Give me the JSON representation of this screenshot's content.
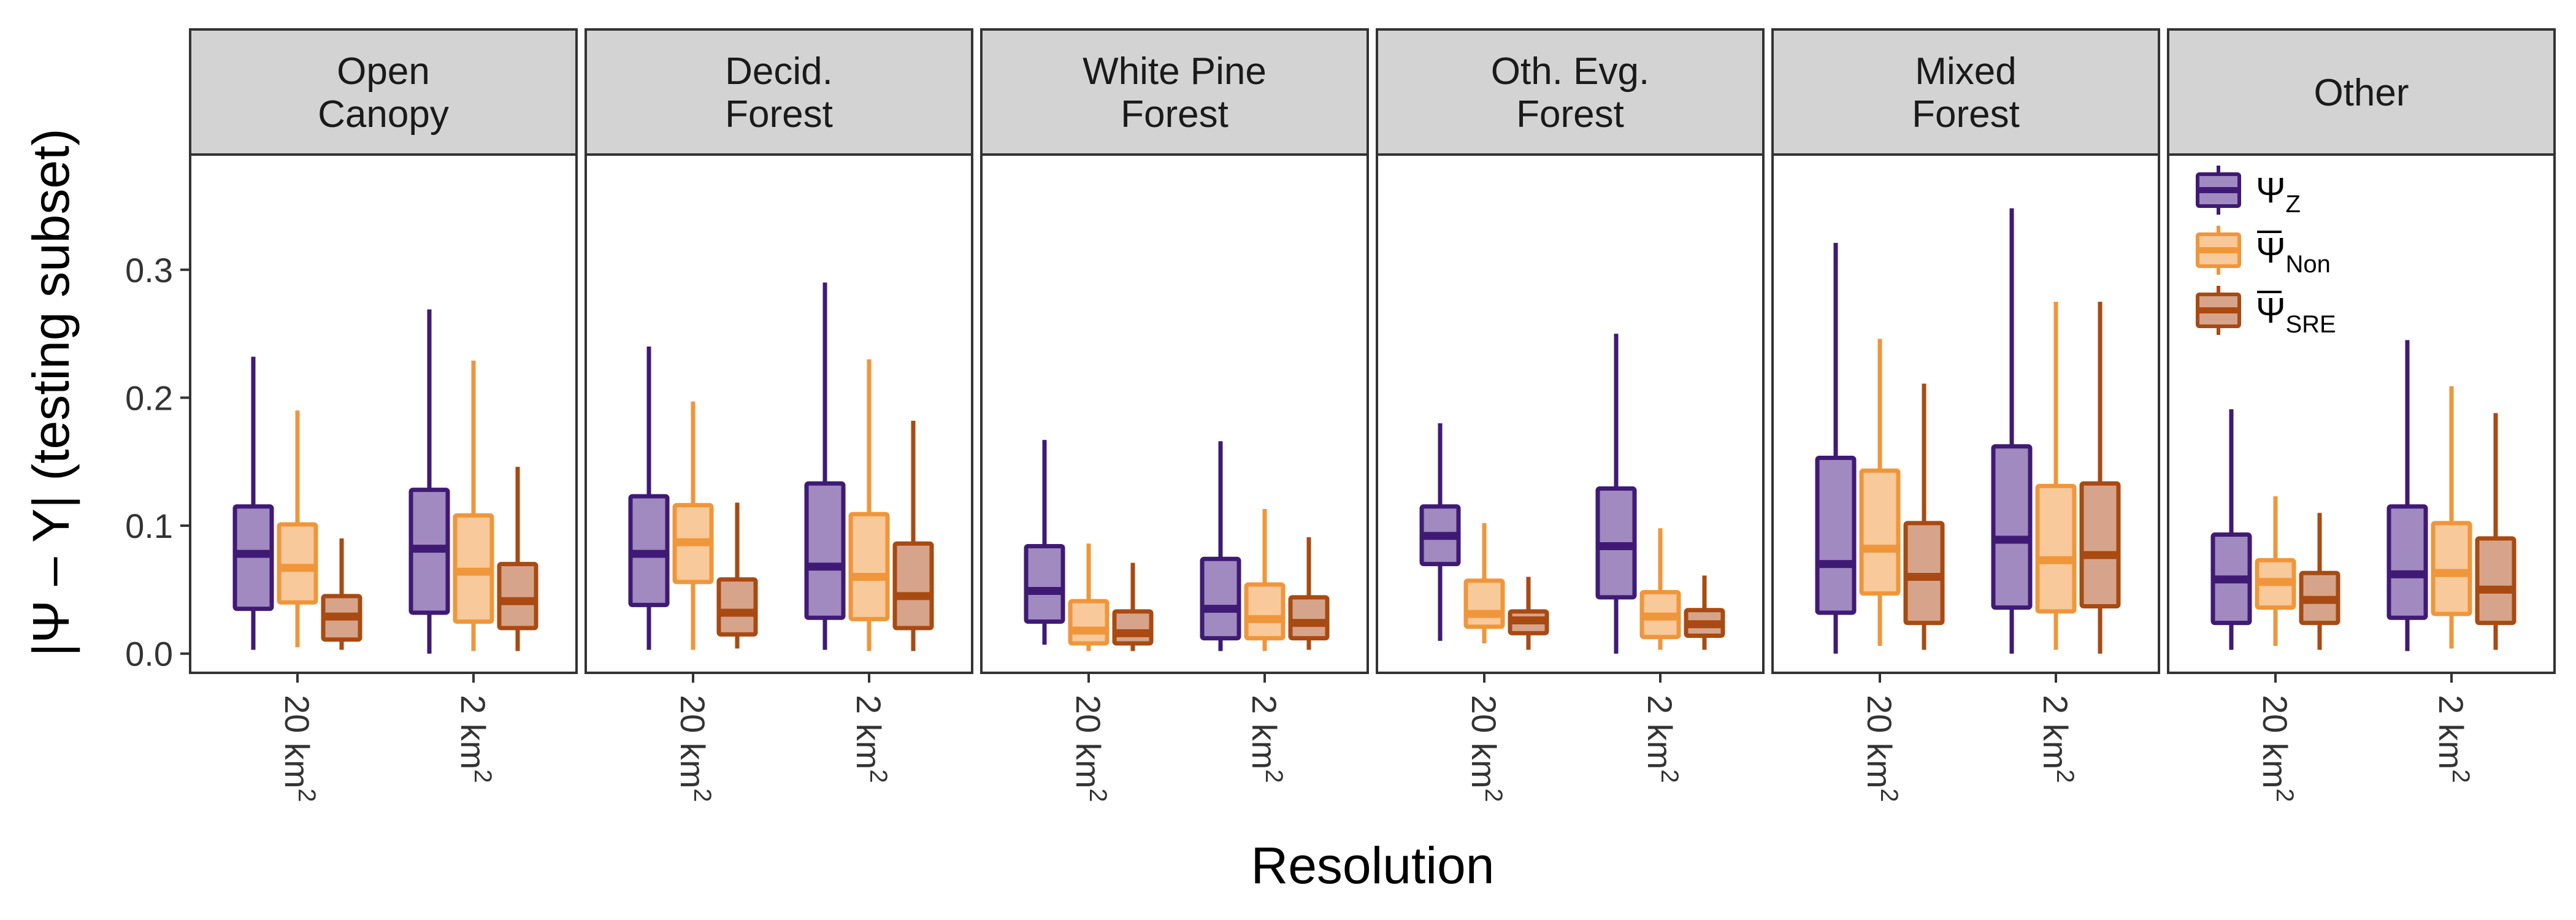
{
  "chart_data": {
    "type": "boxplot",
    "xlabel": "Resolution",
    "ylabel": "|Ψ – Y| (testing subset)",
    "ylim": [
      -0.015,
      0.39
    ],
    "yticks": [
      0.0,
      0.1,
      0.2,
      0.3
    ],
    "ytick_labels": [
      "0.0",
      "0.1",
      "0.2",
      "0.3"
    ],
    "categories": [
      "20 km²",
      "2 km²"
    ],
    "legend": {
      "position": "top-right (inside Other panel)",
      "entries": [
        {
          "main": "Ψ",
          "sub": "Z",
          "overline": false
        },
        {
          "main": "Ψ",
          "sub": "Non",
          "overline": true
        },
        {
          "main": "Ψ",
          "sub": "SRE",
          "overline": true
        }
      ]
    },
    "series_colors": [
      {
        "stroke": "#3f1a75",
        "fill": "#a08ac0"
      },
      {
        "stroke": "#f0963a",
        "fill": "#f8c99a"
      },
      {
        "stroke": "#a84a12",
        "fill": "#d6a48a"
      }
    ],
    "panels": [
      {
        "label": [
          "Open",
          "Canopy"
        ],
        "groups": [
          [
            [
              0.003,
              0.035,
              0.078,
              0.115,
              0.232
            ],
            [
              0.005,
              0.04,
              0.067,
              0.101,
              0.19
            ],
            [
              0.003,
              0.011,
              0.029,
              0.045,
              0.09
            ]
          ],
          [
            [
              0.0,
              0.032,
              0.082,
              0.128,
              0.269
            ],
            [
              0.002,
              0.025,
              0.064,
              0.108,
              0.229
            ],
            [
              0.002,
              0.02,
              0.041,
              0.07,
              0.146
            ]
          ]
        ]
      },
      {
        "label": [
          "Decid.",
          "Forest"
        ],
        "groups": [
          [
            [
              0.003,
              0.038,
              0.078,
              0.123,
              0.24
            ],
            [
              0.003,
              0.056,
              0.087,
              0.116,
              0.197
            ],
            [
              0.004,
              0.015,
              0.032,
              0.058,
              0.118
            ]
          ],
          [
            [
              0.003,
              0.028,
              0.068,
              0.133,
              0.29
            ],
            [
              0.002,
              0.027,
              0.06,
              0.109,
              0.23
            ],
            [
              0.002,
              0.02,
              0.045,
              0.086,
              0.182
            ]
          ]
        ]
      },
      {
        "label": [
          "White Pine",
          "Forest"
        ],
        "groups": [
          [
            [
              0.007,
              0.025,
              0.049,
              0.084,
              0.167
            ],
            [
              0.002,
              0.008,
              0.018,
              0.041,
              0.086
            ],
            [
              0.002,
              0.008,
              0.016,
              0.033,
              0.071
            ]
          ],
          [
            [
              0.002,
              0.012,
              0.035,
              0.074,
              0.166
            ],
            [
              0.002,
              0.012,
              0.027,
              0.054,
              0.113
            ],
            [
              0.003,
              0.012,
              0.024,
              0.044,
              0.091
            ]
          ]
        ]
      },
      {
        "label": [
          "Oth. Evg.",
          "Forest"
        ],
        "groups": [
          [
            [
              0.01,
              0.07,
              0.092,
              0.115,
              0.18
            ],
            [
              0.008,
              0.021,
              0.031,
              0.057,
              0.102
            ],
            [
              0.003,
              0.016,
              0.026,
              0.033,
              0.06
            ]
          ],
          [
            [
              0.0,
              0.044,
              0.084,
              0.129,
              0.25
            ],
            [
              0.003,
              0.013,
              0.029,
              0.048,
              0.098
            ],
            [
              0.003,
              0.014,
              0.023,
              0.034,
              0.061
            ]
          ]
        ]
      },
      {
        "label": [
          "Mixed",
          "Forest"
        ],
        "groups": [
          [
            [
              0.0,
              0.032,
              0.07,
              0.153,
              0.321
            ],
            [
              0.006,
              0.047,
              0.082,
              0.143,
              0.246
            ],
            [
              0.003,
              0.024,
              0.06,
              0.102,
              0.211
            ]
          ],
          [
            [
              0.0,
              0.036,
              0.089,
              0.162,
              0.348
            ],
            [
              0.003,
              0.033,
              0.073,
              0.131,
              0.275
            ],
            [
              0.0,
              0.037,
              0.077,
              0.133,
              0.275
            ]
          ]
        ]
      },
      {
        "label": [
          "Other"
        ],
        "groups": [
          [
            [
              0.003,
              0.024,
              0.058,
              0.093,
              0.191
            ],
            [
              0.006,
              0.036,
              0.056,
              0.073,
              0.123
            ],
            [
              0.003,
              0.024,
              0.042,
              0.063,
              0.11
            ]
          ],
          [
            [
              0.002,
              0.028,
              0.062,
              0.115,
              0.245
            ],
            [
              0.004,
              0.031,
              0.063,
              0.102,
              0.209
            ],
            [
              0.003,
              0.024,
              0.05,
              0.09,
              0.188
            ]
          ]
        ]
      }
    ]
  }
}
